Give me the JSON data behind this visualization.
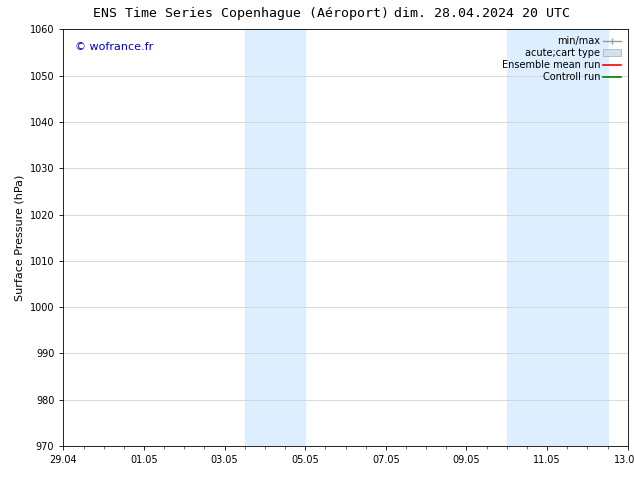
{
  "title_left": "ENS Time Series Copenhague (Aéroport)",
  "title_right": "dim. 28.04.2024 20 UTC",
  "ylabel": "Surface Pressure (hPa)",
  "ylim": [
    970,
    1060
  ],
  "yticks": [
    970,
    980,
    990,
    1000,
    1010,
    1020,
    1030,
    1040,
    1050,
    1060
  ],
  "xlim_start": 0,
  "xlim_end": 14,
  "xtick_labels": [
    "29.04",
    "01.05",
    "03.05",
    "05.05",
    "07.05",
    "09.05",
    "11.05",
    "13.05"
  ],
  "xtick_positions": [
    0,
    2,
    4,
    6,
    8,
    10,
    12,
    14
  ],
  "shaded_regions": [
    {
      "xmin": 4.5,
      "xmax": 6.0,
      "color": "#ddeeff"
    },
    {
      "xmin": 11.0,
      "xmax": 13.5,
      "color": "#ddeeff"
    }
  ],
  "watermark_text": "© wofrance.fr",
  "watermark_color": "#0000cc",
  "background_color": "#ffffff",
  "legend_entries": [
    {
      "label": "min/max",
      "color": "#aaaaaa",
      "lw": 1.0
    },
    {
      "label": "acute;cart type",
      "facecolor": "#d0e0f0",
      "edgecolor": "#aaaaaa"
    },
    {
      "label": "Ensemble mean run",
      "color": "red",
      "lw": 1.2
    },
    {
      "label": "Controll run",
      "color": "green",
      "lw": 1.2
    }
  ],
  "grid_color": "#cccccc",
  "spine_color": "#000000",
  "title_fontsize": 9.5,
  "tick_fontsize": 7,
  "ylabel_fontsize": 8,
  "legend_fontsize": 7,
  "watermark_fontsize": 8
}
